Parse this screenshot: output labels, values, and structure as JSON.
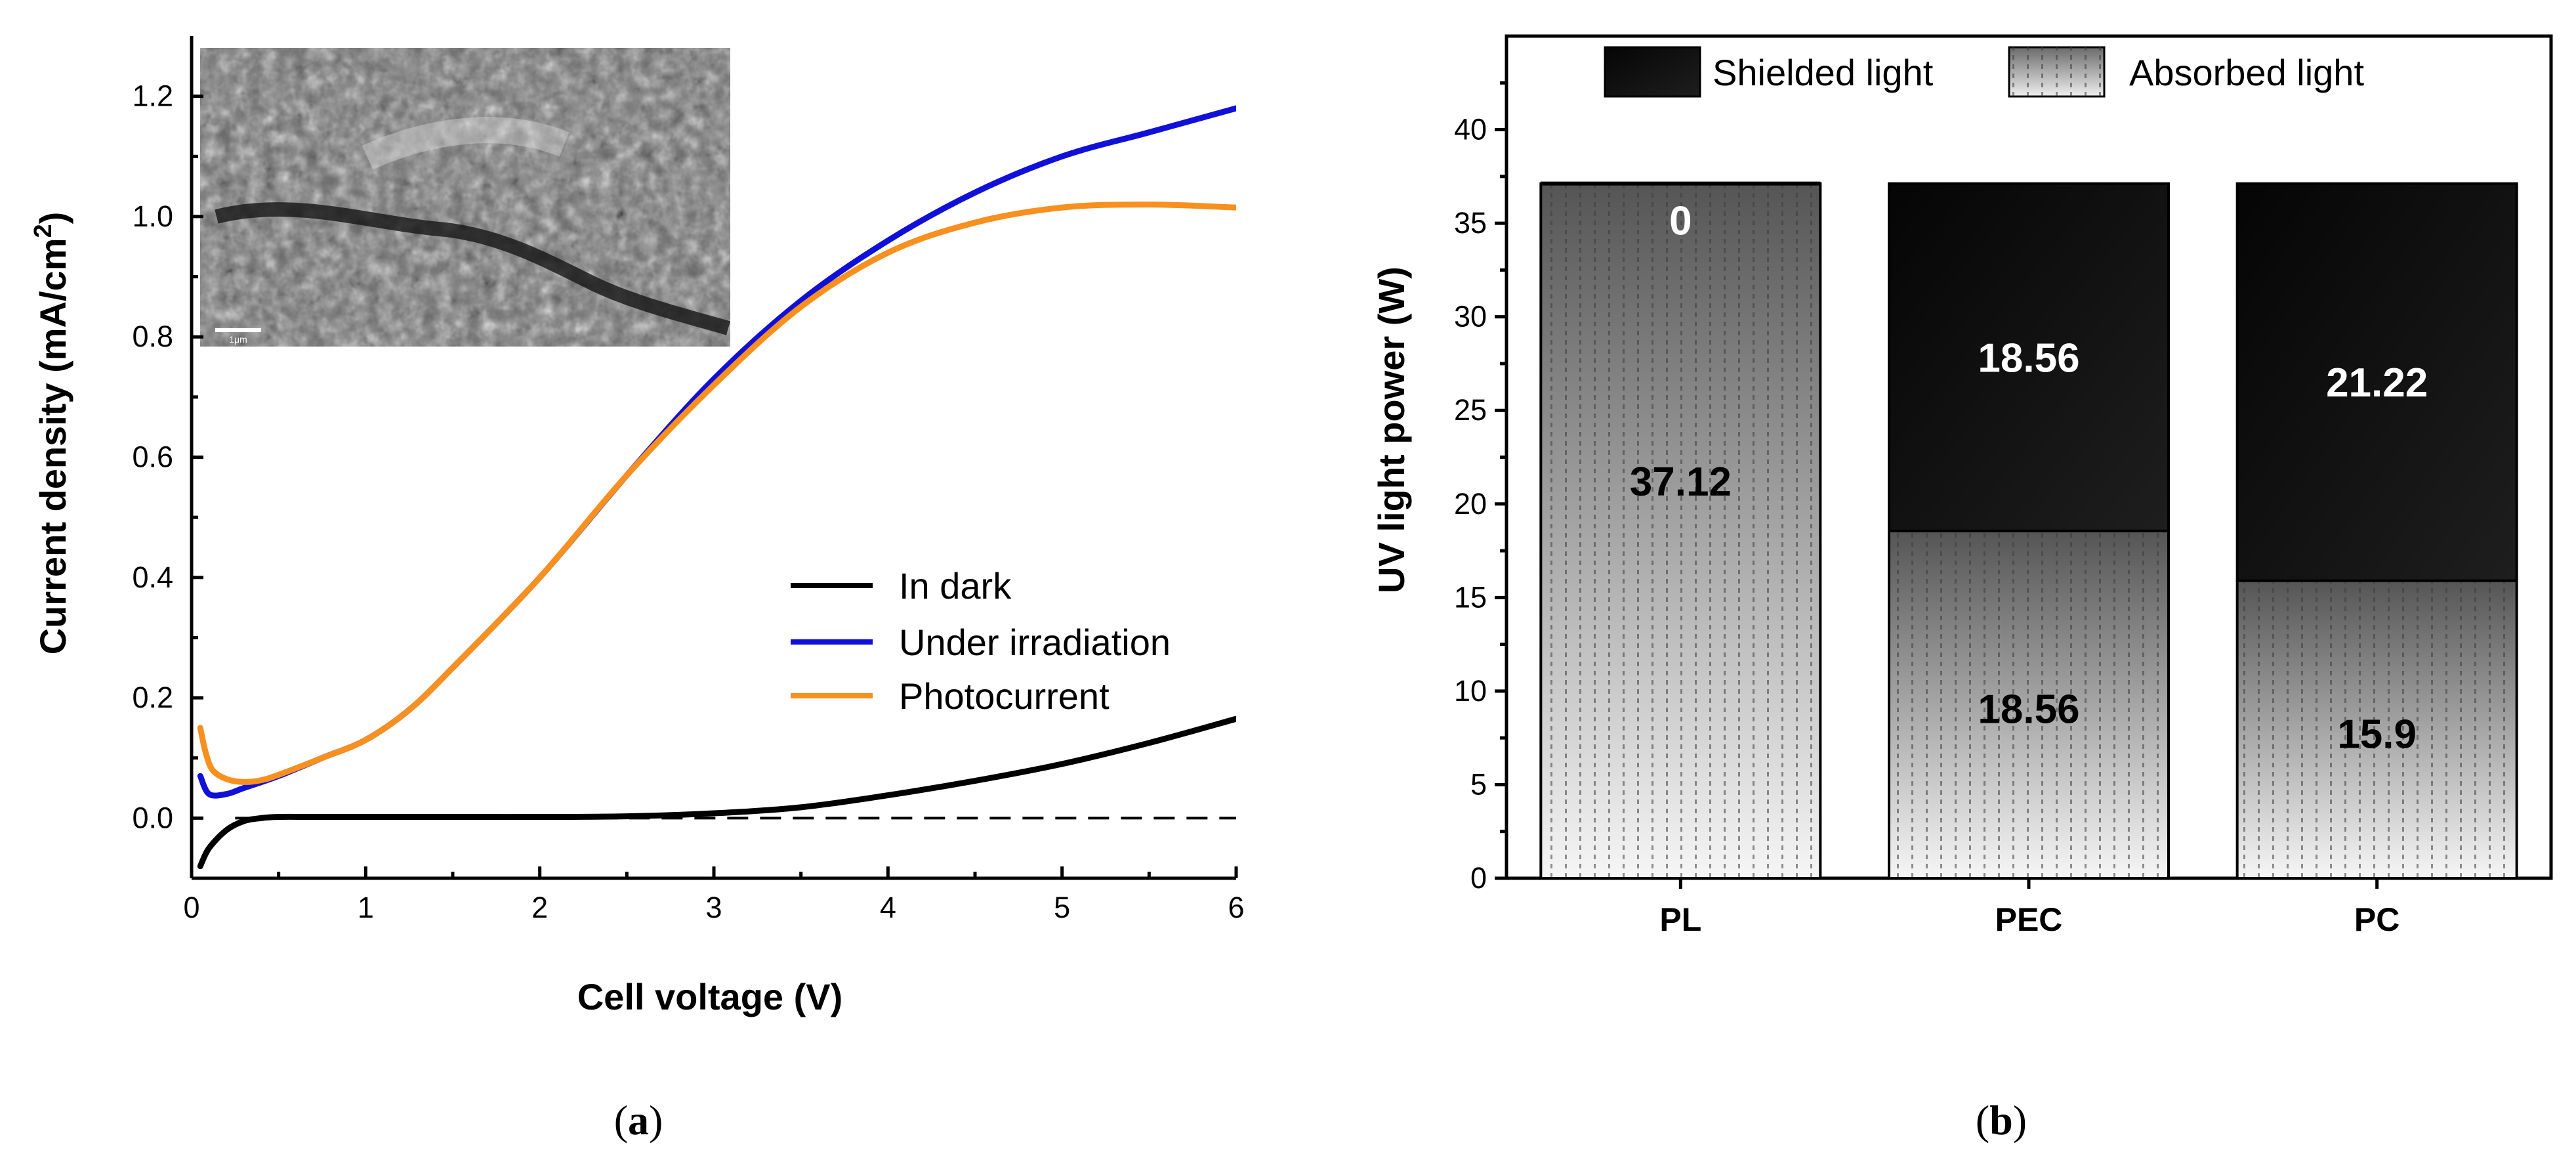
{
  "figure_labels": {
    "panel_a": {
      "open": "(",
      "letter": "a",
      "close": ")"
    },
    "panel_b": {
      "open": "(",
      "letter": "b",
      "close": ")"
    }
  },
  "inset": {
    "scale_bar_label": "1μm"
  },
  "colors": {
    "dark": "#000000",
    "irradiation": "#1010d8",
    "photocurrent": "#f7901e",
    "shielded": "#111111",
    "absorbed_top": "#555555",
    "absorbed_bottom": "#f2f2f2"
  },
  "chart_data": [
    {
      "type": "line",
      "xlabel": "Cell voltage (V)",
      "ylabel_main": "Current density (mA/cm",
      "ylabel_sup": "2",
      "ylabel_close": ")",
      "xlim": [
        0,
        6
      ],
      "ylim": [
        -0.1,
        1.3
      ],
      "xticks": [
        0,
        1,
        2,
        3,
        4,
        5,
        6
      ],
      "yticks": [
        0.0,
        0.2,
        0.4,
        0.6,
        0.8,
        1.0,
        1.2
      ],
      "ytick_labels": [
        "0.0",
        "0.2",
        "0.4",
        "0.6",
        "0.8",
        "1.0",
        "1.2"
      ],
      "reference_line": {
        "y": 0.0,
        "x_from": 0.25,
        "x_to": 6.0,
        "style": "dashed"
      },
      "series": [
        {
          "name": "In dark",
          "color": "#000000",
          "x": [
            0.05,
            0.1,
            0.2,
            0.3,
            0.4,
            0.5,
            0.7,
            1.0,
            1.5,
            2.0,
            2.5,
            3.0,
            3.5,
            4.0,
            4.5,
            5.0,
            5.5,
            6.0
          ],
          "y": [
            -0.08,
            -0.05,
            -0.02,
            -0.005,
            0.0,
            0.002,
            0.002,
            0.002,
            0.002,
            0.002,
            0.003,
            0.008,
            0.018,
            0.038,
            0.062,
            0.09,
            0.125,
            0.165
          ]
        },
        {
          "name": "Under irradiation",
          "color": "#1010d8",
          "x": [
            0.05,
            0.1,
            0.2,
            0.3,
            0.5,
            0.75,
            1.0,
            1.25,
            1.5,
            2.0,
            2.5,
            3.0,
            3.5,
            4.0,
            4.5,
            5.0,
            5.5,
            6.0
          ],
          "y": [
            0.07,
            0.04,
            0.04,
            0.05,
            0.07,
            0.1,
            0.13,
            0.18,
            0.25,
            0.4,
            0.57,
            0.73,
            0.86,
            0.96,
            1.04,
            1.1,
            1.14,
            1.18
          ]
        },
        {
          "name": "Photocurrent",
          "color": "#f7901e",
          "x": [
            0.05,
            0.08,
            0.12,
            0.2,
            0.3,
            0.4,
            0.5,
            0.75,
            1.0,
            1.25,
            1.5,
            2.0,
            2.5,
            3.0,
            3.5,
            4.0,
            4.5,
            5.0,
            5.5,
            6.0
          ],
          "y": [
            0.15,
            0.11,
            0.08,
            0.065,
            0.06,
            0.063,
            0.072,
            0.1,
            0.13,
            0.18,
            0.25,
            0.4,
            0.57,
            0.72,
            0.85,
            0.94,
            0.99,
            1.015,
            1.02,
            1.015
          ]
        }
      ]
    },
    {
      "type": "bar",
      "stacked": true,
      "ylabel": "UV light power (W)",
      "ylim": [
        0,
        45
      ],
      "yticks": [
        0,
        5,
        10,
        15,
        20,
        25,
        30,
        35,
        40
      ],
      "categories": [
        "PL",
        "PEC",
        "PC"
      ],
      "series": [
        {
          "name": "Absorbed light",
          "values": [
            37.12,
            18.56,
            15.9
          ],
          "labels": [
            "37.12",
            "18.56",
            "15.9"
          ]
        },
        {
          "name": "Shielded light",
          "values": [
            0,
            18.56,
            21.22
          ],
          "labels": [
            "0",
            "18.56",
            "21.22"
          ]
        }
      ],
      "legend": [
        {
          "name": "Shielded light"
        },
        {
          "name": "Absorbed light"
        }
      ]
    }
  ]
}
